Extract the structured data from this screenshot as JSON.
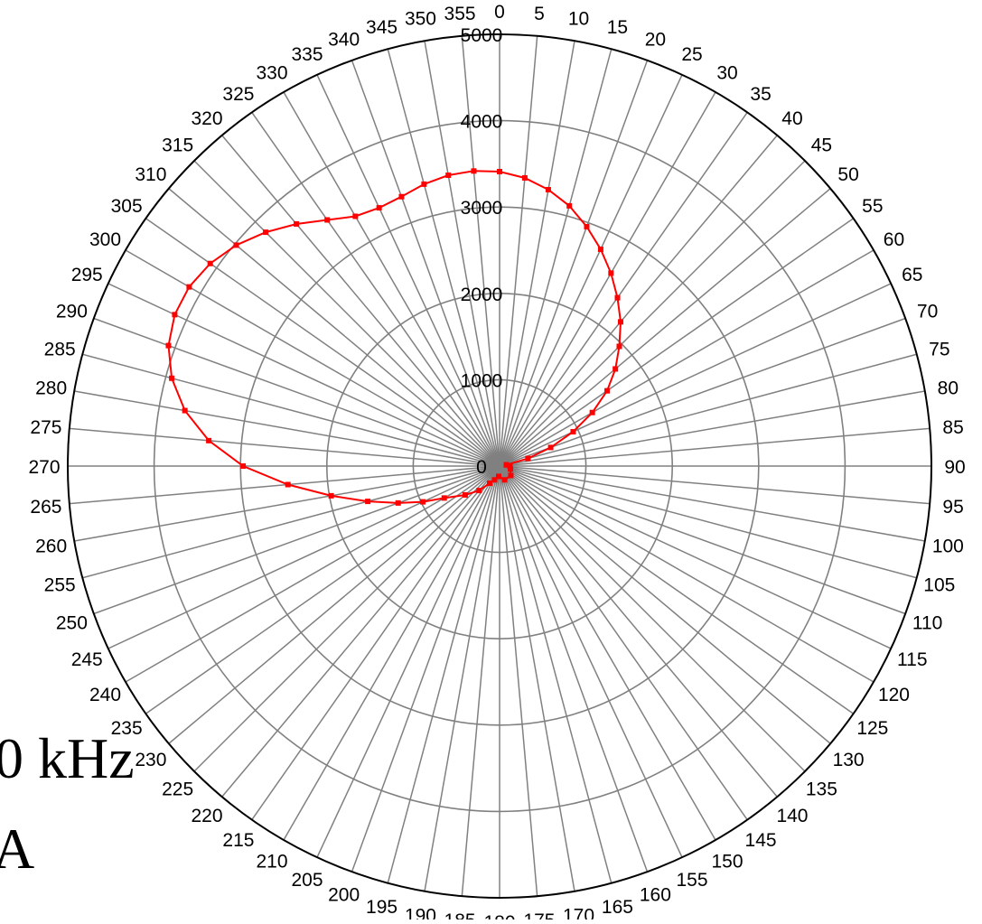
{
  "side_text": {
    "frequency": "0 kHz",
    "unit": "A"
  },
  "colors": {
    "series": "#ff0000",
    "grid": "#808080",
    "outer_ring": "#000000",
    "background": "#ffffff"
  },
  "chart_data": {
    "type": "line",
    "coordinate_system": "polar",
    "angle_direction": "clockwise",
    "zero_angle": "top",
    "angle_ticks": [
      0,
      5,
      10,
      15,
      20,
      25,
      30,
      35,
      40,
      45,
      50,
      55,
      60,
      65,
      70,
      75,
      80,
      85,
      90,
      95,
      100,
      105,
      110,
      115,
      120,
      125,
      130,
      135,
      140,
      145,
      150,
      155,
      160,
      165,
      170,
      175,
      180,
      185,
      190,
      195,
      200,
      205,
      210,
      215,
      220,
      225,
      230,
      235,
      240,
      245,
      250,
      255,
      260,
      265,
      270,
      275,
      280,
      285,
      290,
      295,
      300,
      305,
      310,
      315,
      320,
      325,
      330,
      335,
      340,
      345,
      350,
      355
    ],
    "radial_ticks": [
      0,
      1000,
      2000,
      3000,
      4000,
      5000
    ],
    "rlim": [
      0,
      5000
    ],
    "grid": true,
    "series": [
      {
        "marker": "square",
        "points": [
          {
            "angle": 80,
            "r": 80
          },
          {
            "angle": 90,
            "r": 120
          },
          {
            "angle": 105,
            "r": 130
          },
          {
            "angle": 130,
            "r": 170
          },
          {
            "angle": 160,
            "r": 170
          },
          {
            "angle": 185,
            "r": 120
          },
          {
            "angle": 200,
            "r": 170
          },
          {
            "angle": 210,
            "r": 230
          },
          {
            "angle": 220,
            "r": 370
          },
          {
            "angle": 230,
            "r": 520
          },
          {
            "angle": 240,
            "r": 740
          },
          {
            "angle": 245,
            "r": 980
          },
          {
            "angle": 250,
            "r": 1250
          },
          {
            "angle": 255,
            "r": 1580
          },
          {
            "angle": 260,
            "r": 1980
          },
          {
            "angle": 265,
            "r": 2460
          },
          {
            "angle": 270,
            "r": 2970
          },
          {
            "angle": 275,
            "r": 3380
          },
          {
            "angle": 280,
            "r": 3700
          },
          {
            "angle": 285,
            "r": 3930
          },
          {
            "angle": 290,
            "r": 4080
          },
          {
            "angle": 295,
            "r": 4150
          },
          {
            "angle": 300,
            "r": 4150
          },
          {
            "angle": 305,
            "r": 4090
          },
          {
            "angle": 310,
            "r": 3980
          },
          {
            "angle": 315,
            "r": 3830
          },
          {
            "angle": 320,
            "r": 3660
          },
          {
            "angle": 325,
            "r": 3480
          },
          {
            "angle": 330,
            "r": 3340
          },
          {
            "angle": 335,
            "r": 3300
          },
          {
            "angle": 340,
            "r": 3320
          },
          {
            "angle": 345,
            "r": 3380
          },
          {
            "angle": 350,
            "r": 3420
          },
          {
            "angle": 355,
            "r": 3430
          },
          {
            "angle": 0,
            "r": 3410
          },
          {
            "angle": 5,
            "r": 3350
          },
          {
            "angle": 10,
            "r": 3250
          },
          {
            "angle": 15,
            "r": 3120
          },
          {
            "angle": 20,
            "r": 2950
          },
          {
            "angle": 25,
            "r": 2770
          },
          {
            "angle": 30,
            "r": 2580
          },
          {
            "angle": 35,
            "r": 2380
          },
          {
            "angle": 40,
            "r": 2180
          },
          {
            "angle": 45,
            "r": 1960
          },
          {
            "angle": 50,
            "r": 1750
          },
          {
            "angle": 55,
            "r": 1520
          },
          {
            "angle": 60,
            "r": 1240
          },
          {
            "angle": 65,
            "r": 940
          },
          {
            "angle": 70,
            "r": 630
          },
          {
            "angle": 75,
            "r": 340
          },
          {
            "angle": 80,
            "r": 80
          }
        ]
      }
    ]
  }
}
